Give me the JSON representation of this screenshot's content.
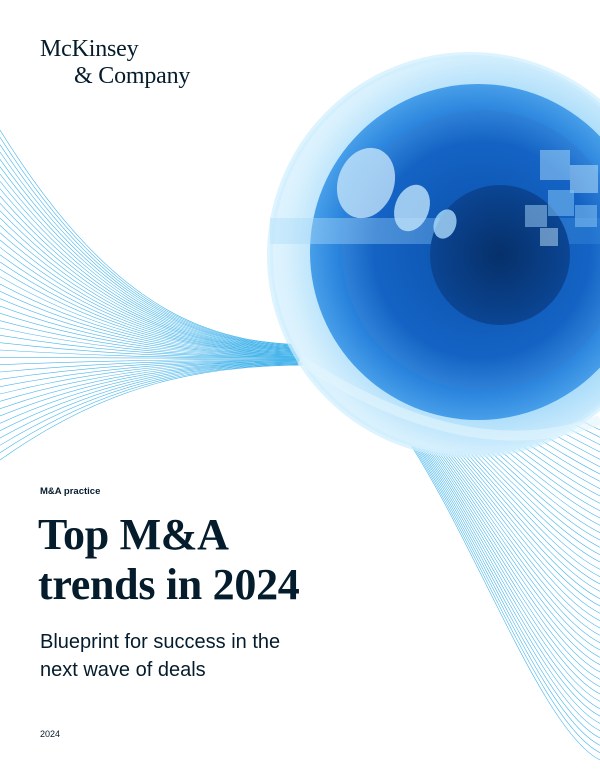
{
  "brand": {
    "line1": "McKinsey",
    "line2": "& Company"
  },
  "practice": "M&A practice",
  "title": {
    "line1": "Top M&A",
    "line2": "trends in 2024"
  },
  "subtitle": {
    "line1": "Blueprint for success in the",
    "line2": "next wave of deals"
  },
  "year": "2024",
  "colors": {
    "navy": "#051c2c",
    "lens_blue": "#1f6fd0",
    "line_blue": "#2aa9e8"
  }
}
